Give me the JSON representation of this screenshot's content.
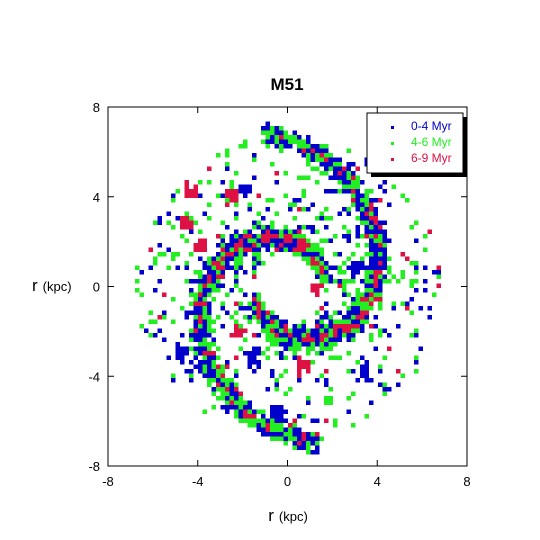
{
  "chart_data": {
    "type": "scatter",
    "title": "M51",
    "xlabel": {
      "main": "r",
      "unit": "(kpc)"
    },
    "ylabel": {
      "main": "r",
      "unit": "(kpc)"
    },
    "xlim": [
      -8,
      8
    ],
    "ylim": [
      -8,
      8
    ],
    "x_ticks": [
      "-8",
      "-4",
      "0",
      "4",
      "8"
    ],
    "y_ticks": [
      "8",
      "4",
      "0",
      "-4",
      "-8"
    ],
    "tick_values": [
      -8,
      -4,
      0,
      4,
      8
    ],
    "grid": false,
    "legend_position": "top-right",
    "hole_radius": 1.2,
    "arm_pitch": 0.36,
    "series": [
      {
        "name": "0-4 Myr",
        "color": "#0000cc",
        "weight": 0.4
      },
      {
        "name": "4-6 Myr",
        "color": "#22ee22",
        "weight": 0.52
      },
      {
        "name": "6-9 Myr",
        "color": "#dd1144",
        "weight": 0.08
      }
    ],
    "clusters": [
      {
        "x": -4.3,
        "y": 4.3,
        "series": "6-9 Myr"
      },
      {
        "x": -4.6,
        "y": 2.9,
        "series": "6-9 Myr"
      },
      {
        "x": -3.9,
        "y": 1.9,
        "series": "6-9 Myr"
      },
      {
        "x": 3.8,
        "y": -0.4,
        "series": "6-9 Myr"
      },
      {
        "x": -2.3,
        "y": -1.9,
        "series": "6-9 Myr"
      },
      {
        "x": 0.6,
        "y": -3.4,
        "series": "6-9 Myr"
      },
      {
        "x": 1.2,
        "y": 0.0,
        "series": "6-9 Myr"
      },
      {
        "x": -2.6,
        "y": 4.1,
        "series": "6-9 Myr"
      },
      {
        "x": -2.0,
        "y": 4.4,
        "series": "0-4 Myr"
      },
      {
        "x": 3.3,
        "y": -3.8,
        "series": "0-4 Myr"
      },
      {
        "x": -0.5,
        "y": -5.5,
        "series": "0-4 Myr"
      },
      {
        "x": -4.8,
        "y": -2.8,
        "series": "0-4 Myr"
      },
      {
        "x": 3.0,
        "y": 1.0,
        "series": "0-4 Myr"
      },
      {
        "x": -1.6,
        "y": -3.0,
        "series": "0-4 Myr"
      }
    ]
  }
}
